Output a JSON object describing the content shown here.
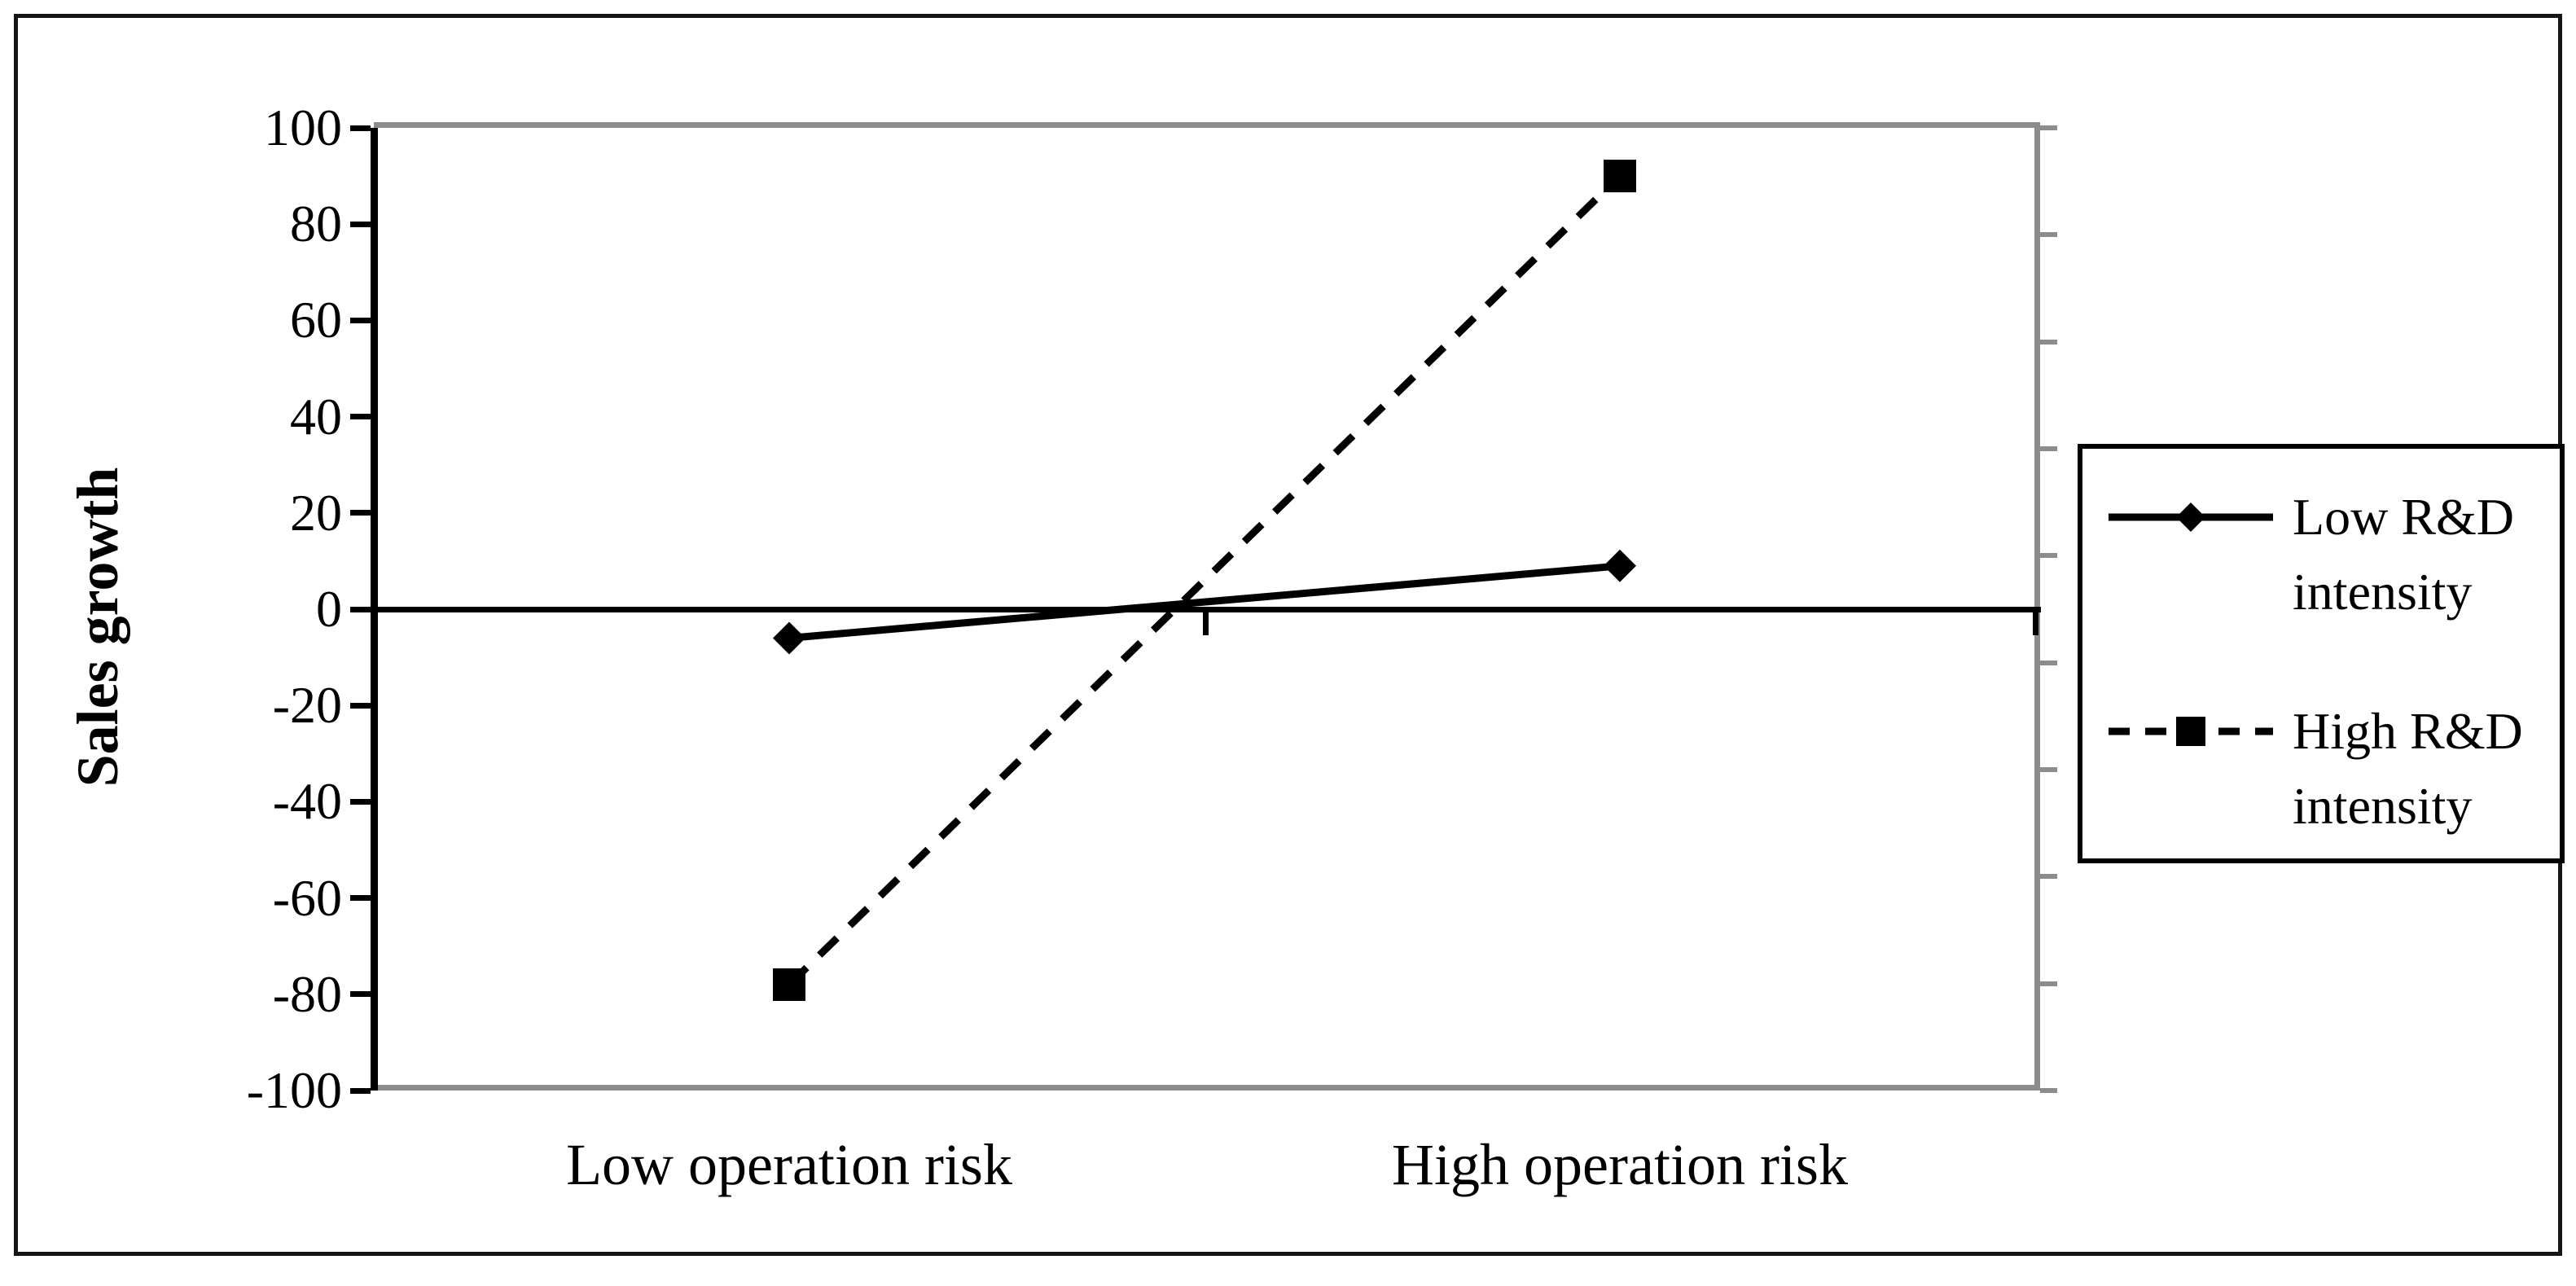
{
  "chart_data": {
    "type": "line",
    "categories": [
      "Low operation risk",
      "High operation risk"
    ],
    "series": [
      {
        "name": "Low R&D intensity",
        "values": [
          -6,
          9
        ],
        "line_style": "solid",
        "marker": "diamond",
        "color": "#000000"
      },
      {
        "name": "High R&D intensity",
        "values": [
          -78,
          90
        ],
        "line_style": "dashed",
        "marker": "square",
        "color": "#000000"
      }
    ],
    "title": "",
    "xlabel": "",
    "ylabel": "Sales growth",
    "ylim": [
      -100,
      100
    ],
    "y_tick_interval": 20,
    "y_tick_labels": [
      "100",
      "80",
      "60",
      "40",
      "20",
      "0",
      "-20",
      "-40",
      "-60",
      "-80",
      "-100"
    ],
    "legend_position": "right-outside",
    "grid": false,
    "zero_line": true,
    "axis_color": "#000000",
    "plot_border_color": "#8c8c8c",
    "background_color": "#ffffff"
  }
}
